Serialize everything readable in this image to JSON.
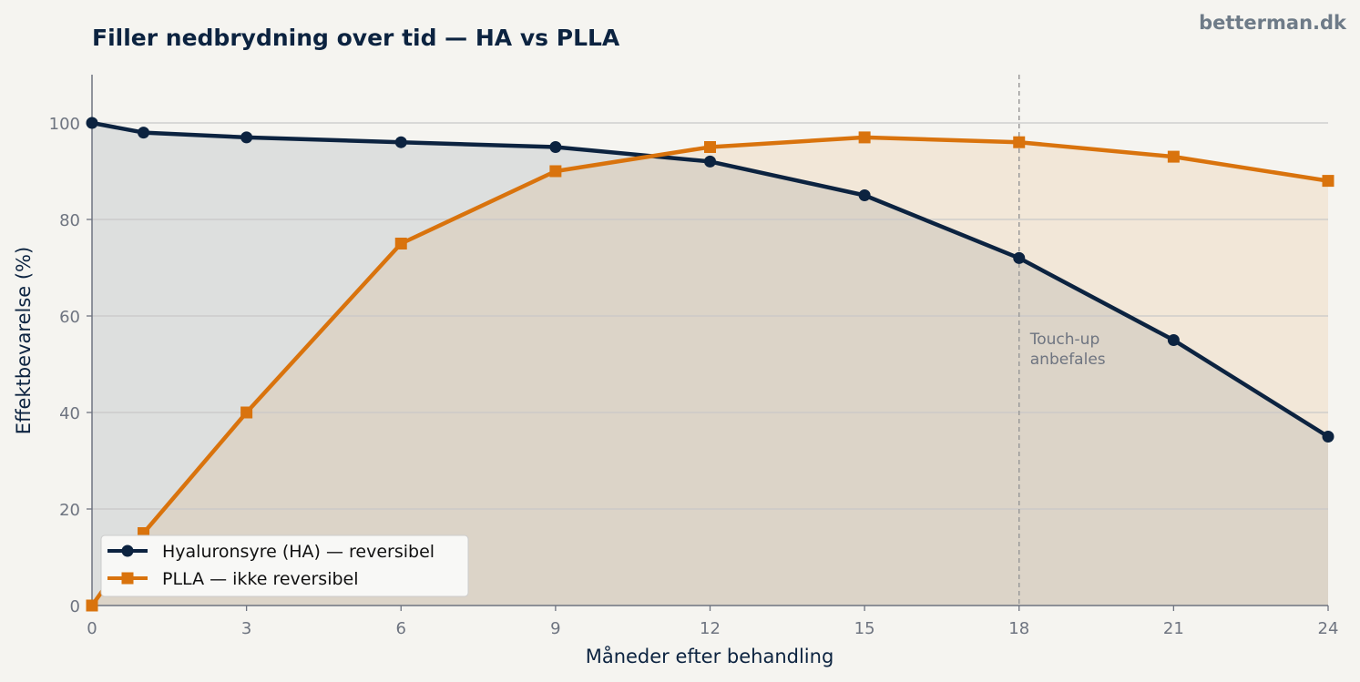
{
  "brand": "betterman.dk",
  "chart_data": {
    "type": "line",
    "title": "Filler nedbrydning over tid — HA vs PLLA",
    "xlabel": "Måneder efter behandling",
    "ylabel": "Effektbevarelse (%)",
    "xlim": [
      0,
      24
    ],
    "ylim": [
      0,
      110
    ],
    "x_ticks": [
      0,
      3,
      6,
      9,
      12,
      15,
      18,
      21,
      24
    ],
    "y_ticks": [
      0,
      20,
      40,
      60,
      80,
      100
    ],
    "grid": "horizontal",
    "legend_position": "lower-left",
    "series": [
      {
        "name": "Hyaluronsyre (HA) — reversibel",
        "color": "#0c2340",
        "marker": "circle",
        "fill": true,
        "x": [
          0,
          1,
          3,
          6,
          9,
          12,
          15,
          18,
          21,
          24
        ],
        "y": [
          100,
          98,
          97,
          96,
          95,
          92,
          85,
          72,
          55,
          35
        ]
      },
      {
        "name": "PLLA — ikke reversibel",
        "color": "#d9730d",
        "marker": "square",
        "fill": true,
        "x": [
          0,
          1,
          3,
          6,
          9,
          12,
          15,
          18,
          21,
          24
        ],
        "y": [
          0,
          15,
          40,
          75,
          90,
          95,
          97,
          96,
          93,
          88
        ]
      }
    ],
    "annotations": [
      {
        "x": 18,
        "type": "vline",
        "label_lines": [
          "Touch-up",
          "anbefales"
        ]
      }
    ]
  }
}
